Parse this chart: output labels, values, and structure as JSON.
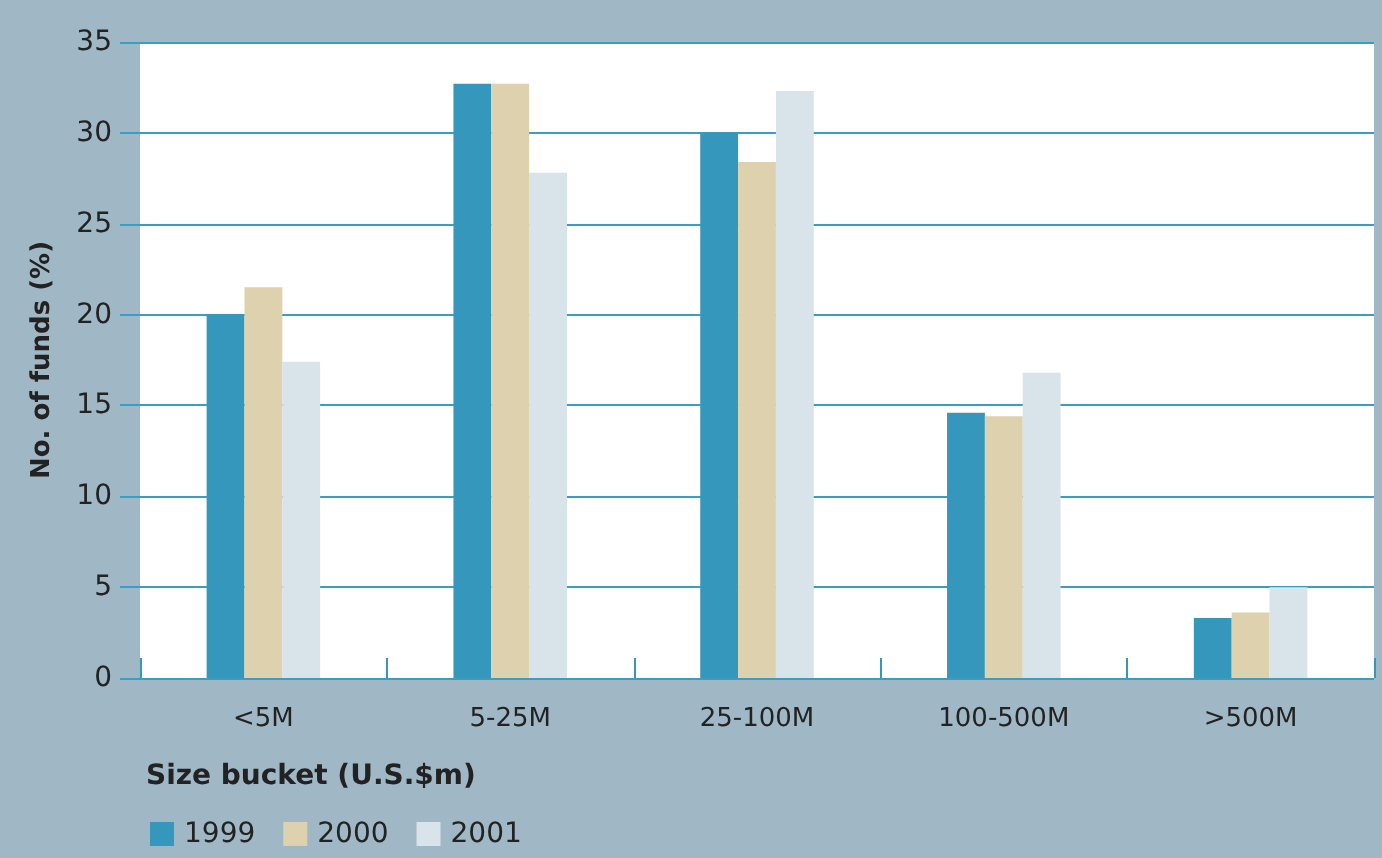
{
  "chart_data": {
    "type": "bar",
    "xlabel": "Size bucket (U.S.$m)",
    "ylabel": "No. of funds (%)",
    "categories": [
      "<5M",
      "5-25M",
      "25-100M",
      "100-500M",
      ">500M"
    ],
    "series": [
      {
        "name": "1999",
        "color": "#3497bb",
        "values": [
          20.0,
          32.7,
          30.0,
          14.6,
          3.3
        ]
      },
      {
        "name": "2000",
        "color": "#ded1ae",
        "values": [
          21.5,
          32.7,
          28.4,
          14.4,
          3.6
        ]
      },
      {
        "name": "2001",
        "color": "#d8e3ea",
        "values": [
          17.4,
          27.8,
          32.3,
          16.8,
          5.0
        ]
      }
    ],
    "ylim": [
      0,
      35
    ],
    "yticks": [
      0,
      5,
      10,
      15,
      20,
      25,
      30,
      35
    ],
    "grid": "y",
    "legend": "bottom left"
  }
}
